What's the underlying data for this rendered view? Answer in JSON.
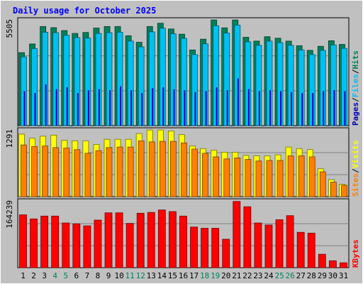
{
  "chart_data": {
    "type": "bar",
    "title": "Daily usage for October 2025",
    "categories": [
      "1",
      "2",
      "3",
      "4",
      "5",
      "6",
      "7",
      "8",
      "9",
      "10",
      "11",
      "12",
      "13",
      "14",
      "15",
      "16",
      "17",
      "18",
      "19",
      "20",
      "21",
      "22",
      "23",
      "24",
      "25",
      "26",
      "27",
      "28",
      "29",
      "30",
      "31"
    ],
    "weekend_days": [
      "4",
      "5",
      "11",
      "12",
      "18",
      "19",
      "25",
      "26"
    ],
    "panels": [
      {
        "id": "hits",
        "max_label": "5505",
        "max": 5505,
        "series": [
          {
            "name": "Hits",
            "color": "#00805c",
            "values": [
              3800,
              4250,
              5160,
              5100,
              4950,
              4800,
              4850,
              5080,
              5160,
              5160,
              4680,
              4340,
              5160,
              5330,
              5030,
              4760,
              3940,
              4500,
              5500,
              5090,
              5500,
              4600,
              4400,
              4630,
              4550,
              4400,
              4160,
              3920,
              4130,
              4420,
              4230
            ]
          },
          {
            "name": "Files",
            "color": "#00c0f0",
            "values": [
              3580,
              4010,
              4860,
              4840,
              4700,
              4580,
              4560,
              4800,
              4840,
              4860,
              4400,
              4100,
              4880,
              5070,
              4780,
              4540,
              3700,
              4260,
              5200,
              4820,
              5230,
              4360,
              4180,
              4400,
              4320,
              4180,
              3940,
              3700,
              3920,
              4200,
              4020
            ]
          },
          {
            "name": "Pages",
            "color": "#0000c0",
            "values": [
              1800,
              1700,
              2150,
              1900,
              2000,
              1700,
              1850,
              1900,
              1850,
              2050,
              1850,
              1700,
              1950,
              2000,
              1900,
              1850,
              1750,
              1800,
              2000,
              1850,
              2450,
              1900,
              1800,
              1850,
              1800,
              1750,
              1700,
              1700,
              1800,
              1850,
              1800
            ]
          }
        ]
      },
      {
        "id": "visits",
        "max_label": "1291",
        "max": 1291,
        "series": [
          {
            "name": "Visits",
            "color": "#ffff00",
            "values": [
              1210,
              1130,
              1170,
              1190,
              1090,
              1080,
              1080,
              1010,
              1110,
              1110,
              1110,
              1220,
              1290,
              1290,
              1270,
              1200,
              980,
              930,
              900,
              860,
              860,
              800,
              790,
              790,
              810,
              960,
              930,
              910,
              540,
              330,
              240
            ]
          },
          {
            "name": "Sites",
            "color": "#ff8000",
            "values": [
              1000,
              970,
              980,
              950,
              940,
              910,
              840,
              890,
              950,
              960,
              960,
              1080,
              1060,
              1070,
              1070,
              1040,
              920,
              840,
              770,
              730,
              750,
              720,
              690,
              700,
              700,
              790,
              790,
              770,
              480,
              280,
              220
            ]
          }
        ]
      },
      {
        "id": "kbytes",
        "max_label": "164239",
        "max": 164239,
        "series": [
          {
            "name": "KBytes",
            "color": "#ff0000",
            "values": [
              130000,
              120000,
              127000,
              127000,
              110000,
              108000,
              103000,
              117000,
              135000,
              135000,
              109000,
              134000,
              136000,
              142000,
              138000,
              127000,
              100000,
              97000,
              97000,
              70000,
              163000,
              150000,
              110000,
              105000,
              118000,
              128000,
              87000,
              85000,
              33000,
              17000,
              12000
            ]
          }
        ]
      }
    ]
  },
  "colors": {
    "background": "#c0c0c0",
    "panel": "#c0c0c0",
    "title": "#0000ff",
    "day_label": "#000000",
    "weekend_label": "#00805c",
    "separator": "#000000",
    "gridline": "#808080"
  }
}
